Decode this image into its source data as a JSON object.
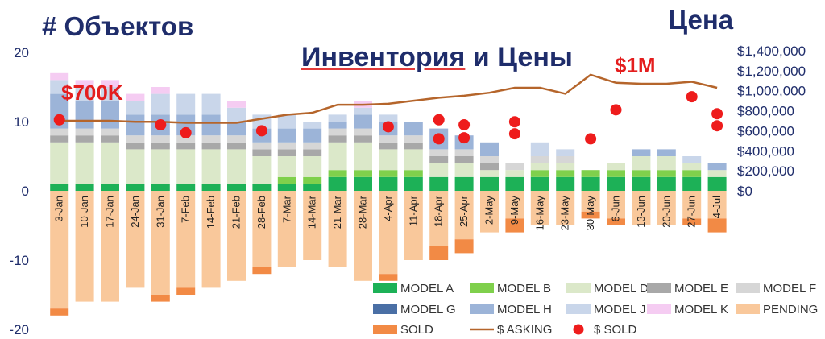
{
  "titles": {
    "left_axis": "# Объектов",
    "right_axis": "Цена",
    "main_part1": "Инвентория",
    "main_part2": " и Цены"
  },
  "annotations": {
    "start_price": "$700K",
    "peak_price": "$1M"
  },
  "colors": {
    "MODEL A": "#1db157",
    "MODEL B": "#7fd04c",
    "MODEL D": "#dbe8c9",
    "MODEL E": "#a8a8a8",
    "MODEL F": "#d6d6d6",
    "MODEL G": "#4a6fa5",
    "MODEL H": "#9cb4d8",
    "MODEL J": "#c9d6ea",
    "MODEL K": "#f5ccf2",
    "PENDING": "#f9c89b",
    "SOLD": "#f28a45",
    "$ ASKING": "#b5652b",
    "$ SOLD": "#ee1c1c"
  },
  "chart_data": {
    "type": "bar",
    "subtype": "stacked bar with line and scatter overlay, secondary axis",
    "categories": [
      "3-Jan",
      "10-Jan",
      "17-Jan",
      "24-Jan",
      "31-Jan",
      "7-Feb",
      "14-Feb",
      "21-Feb",
      "28-Feb",
      "7-Mar",
      "14-Mar",
      "21-Mar",
      "28-Mar",
      "4-Apr",
      "11-Apr",
      "18-Apr",
      "25-Apr",
      "2-May",
      "9-May",
      "16-May",
      "23-May",
      "30-May",
      "6-Jun",
      "13-Jun",
      "20-Jun",
      "27-Jun",
      "4-Jul"
    ],
    "ylim": [
      -20,
      20
    ],
    "yticks": [
      -20,
      -10,
      0,
      10,
      20
    ],
    "y2lim": [
      0,
      1400000
    ],
    "y2ticks": [
      "$0",
      "$200,000",
      "$400,000",
      "$600,000",
      "$800,000",
      "$1,000,000",
      "$1,200,000",
      "$1,400,000"
    ],
    "series": [
      {
        "name": "MODEL A",
        "kind": "bar",
        "values": [
          1,
          1,
          1,
          1,
          1,
          1,
          1,
          1,
          1,
          1,
          1,
          2,
          2,
          2,
          2,
          2,
          2,
          2,
          2,
          2,
          2,
          2,
          2,
          2,
          2,
          2,
          2
        ]
      },
      {
        "name": "MODEL B",
        "kind": "bar",
        "values": [
          0,
          0,
          0,
          0,
          0,
          0,
          0,
          0,
          0,
          1,
          1,
          1,
          1,
          1,
          1,
          0,
          0,
          0,
          0,
          1,
          1,
          1,
          1,
          1,
          1,
          1,
          0
        ]
      },
      {
        "name": "MODEL D",
        "kind": "bar",
        "values": [
          6,
          6,
          6,
          5,
          5,
          5,
          5,
          5,
          4,
          3,
          3,
          4,
          4,
          3,
          3,
          2,
          2,
          1,
          1,
          1,
          1,
          0,
          1,
          2,
          2,
          1,
          1
        ]
      },
      {
        "name": "MODEL E",
        "kind": "bar",
        "values": [
          1,
          1,
          1,
          1,
          1,
          1,
          1,
          1,
          1,
          1,
          1,
          1,
          1,
          1,
          1,
          1,
          1,
          1,
          0,
          0,
          0,
          0,
          0,
          0,
          0,
          0,
          0
        ]
      },
      {
        "name": "MODEL F",
        "kind": "bar",
        "values": [
          1,
          1,
          1,
          1,
          1,
          1,
          1,
          1,
          1,
          1,
          1,
          1,
          1,
          1,
          1,
          1,
          1,
          1,
          1,
          1,
          1,
          0,
          0,
          0,
          0,
          0,
          0
        ]
      },
      {
        "name": "MODEL G",
        "kind": "bar",
        "values": [
          0,
          0,
          0,
          0,
          0,
          0,
          0,
          0,
          0,
          0,
          0,
          0,
          0,
          0,
          0,
          0,
          0,
          0,
          0,
          0,
          0,
          0,
          0,
          0,
          0,
          0,
          0
        ]
      },
      {
        "name": "MODEL H",
        "kind": "bar",
        "values": [
          5,
          4,
          4,
          3,
          3,
          3,
          3,
          2,
          2,
          2,
          2,
          1,
          2,
          2,
          2,
          3,
          2,
          2,
          0,
          0,
          0,
          0,
          0,
          1,
          1,
          0,
          1
        ]
      },
      {
        "name": "MODEL J",
        "kind": "bar",
        "values": [
          2,
          2,
          2,
          2,
          3,
          3,
          3,
          2,
          2,
          2,
          1,
          1,
          1,
          1,
          0,
          0,
          0,
          0,
          0,
          2,
          1,
          0,
          0,
          0,
          0,
          1,
          0
        ]
      },
      {
        "name": "MODEL K",
        "kind": "bar",
        "values": [
          1,
          1,
          1,
          1,
          1,
          0,
          0,
          1,
          0,
          0,
          0,
          0,
          1,
          0,
          0,
          0,
          0,
          0,
          0,
          0,
          0,
          0,
          0,
          0,
          0,
          0,
          0
        ]
      },
      {
        "name": "PENDING",
        "kind": "bar",
        "values": [
          -17,
          -16,
          -16,
          -14,
          -15,
          -14,
          -14,
          -13,
          -11,
          -11,
          -10,
          -11,
          -13,
          -12,
          -10,
          -8,
          -7,
          -6,
          -4,
          -5,
          -5,
          -3,
          -4,
          -5,
          -5,
          -4,
          -4
        ]
      },
      {
        "name": "SOLD",
        "kind": "bar",
        "values": [
          -1,
          0,
          0,
          0,
          -1,
          -1,
          0,
          0,
          -1,
          0,
          0,
          0,
          0,
          -1,
          0,
          -2,
          -2,
          0,
          -2,
          0,
          0,
          -1,
          -1,
          0,
          0,
          -1,
          -2
        ]
      },
      {
        "name": "$ ASKING",
        "kind": "line",
        "values": [
          700000,
          700000,
          700000,
          690000,
          690000,
          680000,
          680000,
          680000,
          720000,
          760000,
          780000,
          860000,
          860000,
          870000,
          900000,
          930000,
          950000,
          980000,
          1030000,
          1030000,
          970000,
          1160000,
          1080000,
          1070000,
          1070000,
          1090000,
          1030000
        ]
      },
      {
        "name": "$ SOLD",
        "kind": "scatter",
        "points": [
          [
            "3-Jan",
            710000
          ],
          [
            "31-Jan",
            660000
          ],
          [
            "7-Feb",
            580000
          ],
          [
            "28-Feb",
            600000
          ],
          [
            "4-Apr",
            640000
          ],
          [
            "18-Apr",
            710000
          ],
          [
            "18-Apr",
            520000
          ],
          [
            "25-Apr",
            660000
          ],
          [
            "25-Apr",
            530000
          ],
          [
            "9-May",
            690000
          ],
          [
            "9-May",
            570000
          ],
          [
            "30-May",
            520000
          ],
          [
            "6-Jun",
            810000
          ],
          [
            "27-Jun",
            940000
          ],
          [
            "4-Jul",
            770000
          ],
          [
            "4-Jul",
            650000
          ]
        ]
      }
    ],
    "legend_position": "bottom-right",
    "legend": [
      "MODEL A",
      "MODEL B",
      "MODEL D",
      "MODEL E",
      "MODEL F",
      "MODEL G",
      "MODEL H",
      "MODEL J",
      "MODEL K",
      "PENDING",
      "SOLD",
      "$ ASKING",
      "$ SOLD"
    ]
  }
}
